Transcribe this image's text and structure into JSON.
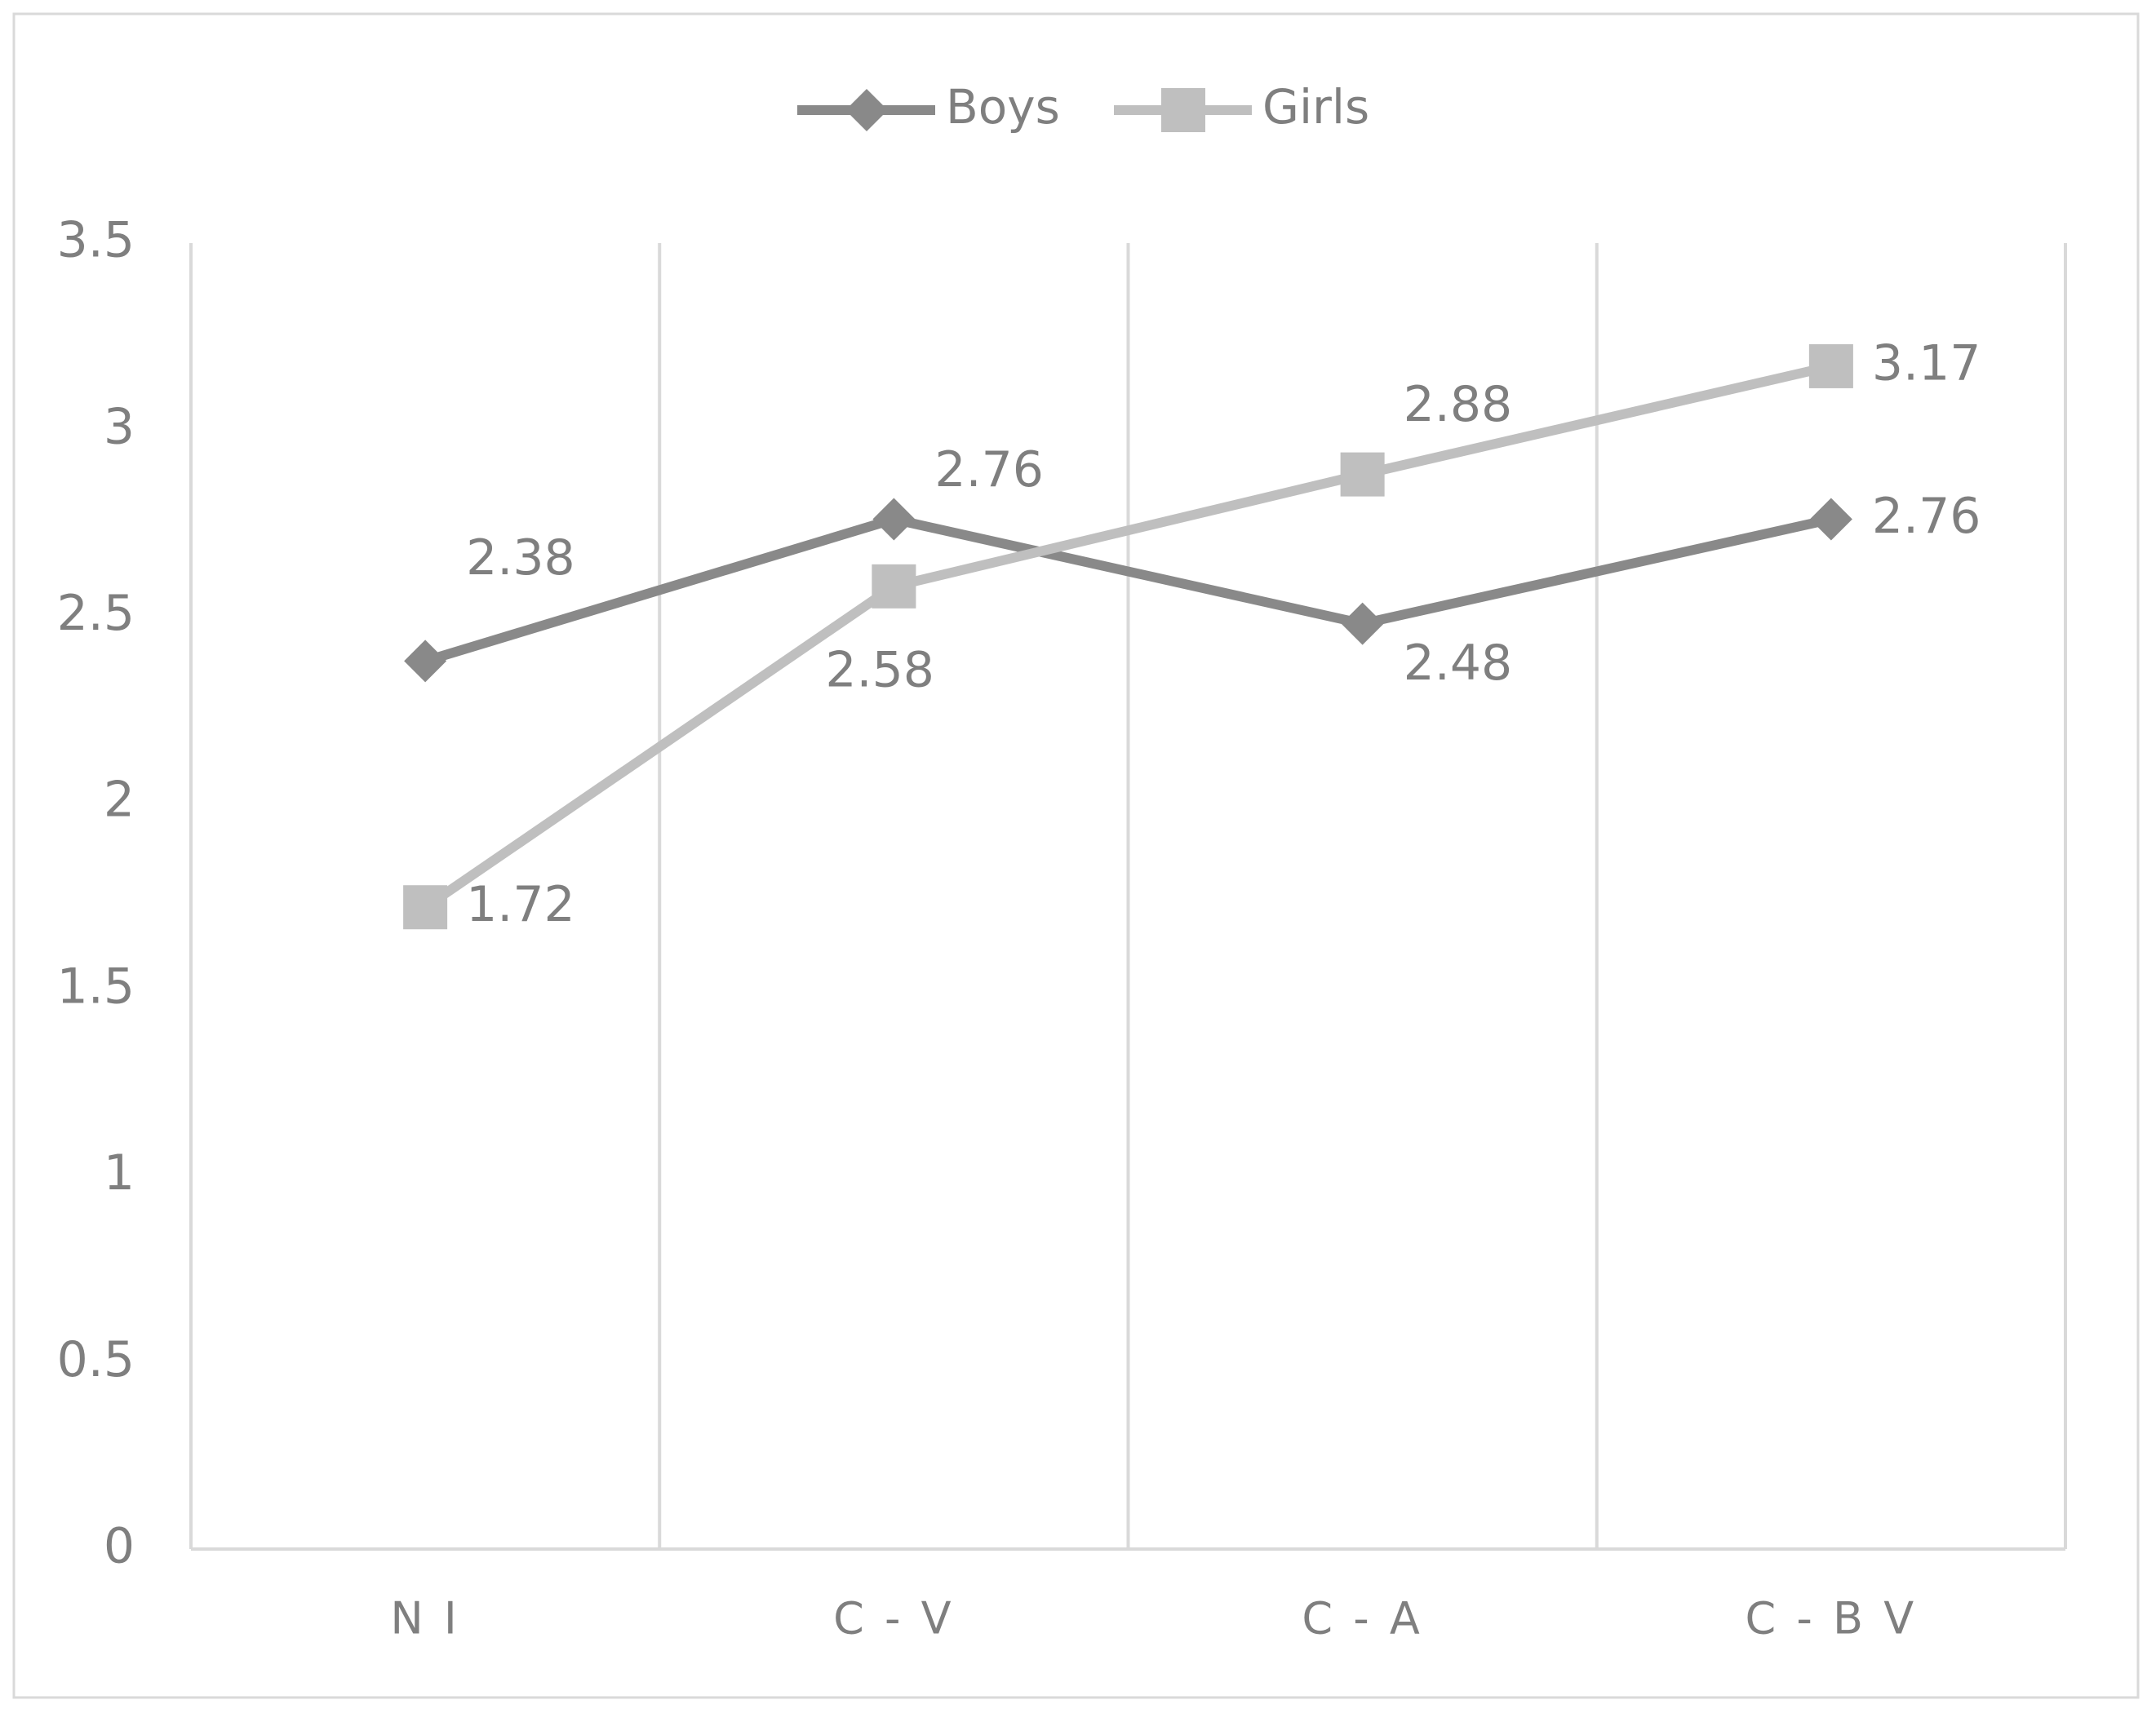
{
  "chart_data": {
    "type": "line",
    "categories": [
      "N I",
      "C - V",
      "C - A",
      "C - B V"
    ],
    "series": [
      {
        "name": "Boys",
        "color": "#898989",
        "marker": "diamond",
        "values": [
          2.38,
          2.76,
          2.48,
          2.76
        ]
      },
      {
        "name": "Girls",
        "color": "#bfbfbf",
        "marker": "square",
        "values": [
          1.72,
          2.58,
          2.88,
          3.17
        ]
      }
    ],
    "ylim": [
      0,
      3.5
    ],
    "yticks": [
      0,
      0.5,
      1,
      1.5,
      2,
      2.5,
      3,
      3.5
    ],
    "legend": "top"
  }
}
